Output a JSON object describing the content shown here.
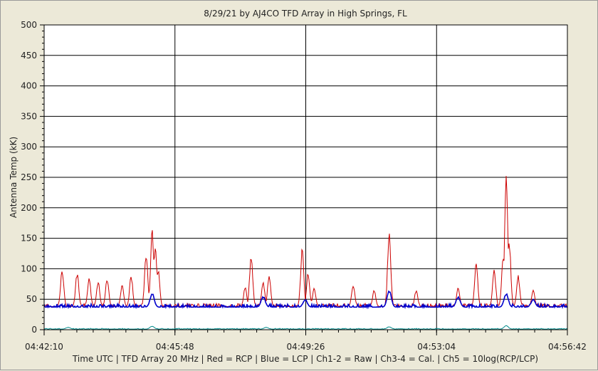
{
  "chart_data": {
    "type": "line",
    "title": "8/29/21  by  AJ4CO TFD Array  in  High Springs, FL",
    "ylabel": "Antenna Temp (kK)",
    "xlabel": "Time UTC | TFD Array 20 MHz | Red = RCP | Blue = LCP | Ch1-2 = Raw | Ch3-4 = Cal. | Ch5 = 10log(RCP/LCP)",
    "ylim": [
      0,
      500
    ],
    "y_ticks": [
      "0",
      "50",
      "100",
      "150",
      "200",
      "250",
      "300",
      "350",
      "400",
      "450",
      "500"
    ],
    "x_ticks": [
      "04:42:10",
      "04:45:48",
      "04:49:26",
      "04:53:04",
      "04:56:42"
    ],
    "x_range": [
      "04:42:10",
      "04:56:42"
    ],
    "grid": true,
    "colors": {
      "rcp": "#cc0000",
      "lcp": "#0000cc",
      "ch5": "#008b8b",
      "grid": "#000000",
      "plot_bg": "#ffffff"
    },
    "series": [
      {
        "name": "RCP",
        "baseline": 38,
        "spikes": [
          [
            "04:42:40",
            100
          ],
          [
            "04:43:05",
            95
          ],
          [
            "04:43:25",
            85
          ],
          [
            "04:43:40",
            80
          ],
          [
            "04:43:55",
            85
          ],
          [
            "04:44:20",
            75
          ],
          [
            "04:44:35",
            90
          ],
          [
            "04:45:00",
            130
          ],
          [
            "04:45:10",
            170
          ],
          [
            "04:45:15",
            140
          ],
          [
            "04:45:20",
            100
          ],
          [
            "04:47:45",
            70
          ],
          [
            "04:47:55",
            125
          ],
          [
            "04:48:15",
            80
          ],
          [
            "04:48:25",
            90
          ],
          [
            "04:49:20",
            135
          ],
          [
            "04:49:30",
            95
          ],
          [
            "04:49:40",
            70
          ],
          [
            "04:50:45",
            75
          ],
          [
            "04:51:20",
            65
          ],
          [
            "04:51:45",
            165
          ],
          [
            "04:52:30",
            65
          ],
          [
            "04:53:40",
            70
          ],
          [
            "04:54:10",
            110
          ],
          [
            "04:54:40",
            100
          ],
          [
            "04:54:55",
            120
          ],
          [
            "04:55:00",
            260
          ],
          [
            "04:55:05",
            150
          ],
          [
            "04:55:20",
            90
          ],
          [
            "04:55:45",
            65
          ]
        ]
      },
      {
        "name": "LCP",
        "baseline": 37,
        "spikes": [
          [
            "04:45:10",
            60
          ],
          [
            "04:48:15",
            55
          ],
          [
            "04:49:25",
            50
          ],
          [
            "04:51:45",
            65
          ],
          [
            "04:53:40",
            55
          ],
          [
            "04:55:00",
            60
          ],
          [
            "04:55:45",
            50
          ]
        ]
      },
      {
        "name": "Ch5",
        "baseline": 1,
        "spikes": [
          [
            "04:42:50",
            4
          ],
          [
            "04:45:10",
            6
          ],
          [
            "04:48:20",
            4
          ],
          [
            "04:51:45",
            5
          ],
          [
            "04:55:00",
            7
          ]
        ]
      }
    ]
  }
}
